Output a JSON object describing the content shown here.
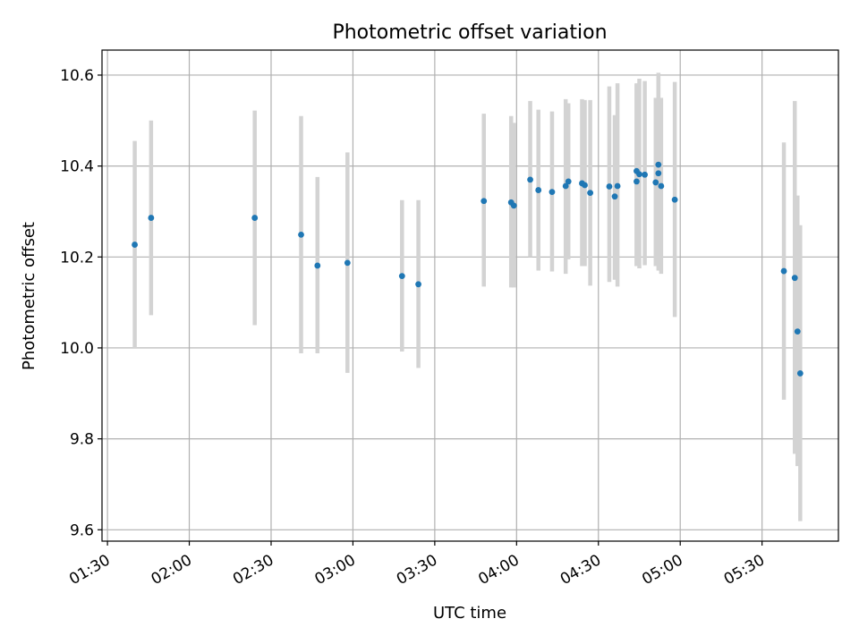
{
  "chart_data": {
    "type": "scatter",
    "title": "Photometric offset variation",
    "xlabel": "UTC time",
    "ylabel": "Photometric offset",
    "xlim": [
      "01:28",
      "05:58"
    ],
    "ylim": [
      9.575,
      10.655
    ],
    "grid": true,
    "x_ticks": [
      "01:30",
      "02:00",
      "02:30",
      "03:00",
      "03:30",
      "04:00",
      "04:30",
      "05:00",
      "05:30"
    ],
    "y_ticks": [
      "9.6",
      "9.8",
      "10.0",
      "10.2",
      "10.4",
      "10.6"
    ],
    "point_color": "#1f77b4",
    "errorbar_color": "#d3d3d3",
    "series": [
      {
        "points": [
          {
            "x": "01:40",
            "y": 10.227,
            "low": 10.0,
            "high": 10.455
          },
          {
            "x": "01:46",
            "y": 10.286,
            "low": 10.072,
            "high": 10.5
          },
          {
            "x": "02:24",
            "y": 10.286,
            "low": 10.05,
            "high": 10.522
          },
          {
            "x": "02:41",
            "y": 10.249,
            "low": 9.988,
            "high": 10.51
          },
          {
            "x": "02:47",
            "y": 10.181,
            "low": 9.988,
            "high": 10.376
          },
          {
            "x": "02:58",
            "y": 10.187,
            "low": 9.945,
            "high": 10.43
          },
          {
            "x": "03:18",
            "y": 10.158,
            "low": 9.992,
            "high": 10.325
          },
          {
            "x": "03:24",
            "y": 10.14,
            "low": 9.956,
            "high": 10.325
          },
          {
            "x": "03:48",
            "y": 10.323,
            "low": 10.135,
            "high": 10.515
          },
          {
            "x": "03:58",
            "y": 10.32,
            "low": 10.133,
            "high": 10.51
          },
          {
            "x": "03:59",
            "y": 10.313,
            "low": 10.133,
            "high": 10.495
          },
          {
            "x": "04:05",
            "y": 10.37,
            "low": 10.2,
            "high": 10.543
          },
          {
            "x": "04:08",
            "y": 10.347,
            "low": 10.17,
            "high": 10.524
          },
          {
            "x": "04:13",
            "y": 10.343,
            "low": 10.168,
            "high": 10.52
          },
          {
            "x": "04:18",
            "y": 10.356,
            "low": 10.163,
            "high": 10.547
          },
          {
            "x": "04:19",
            "y": 10.366,
            "low": 10.195,
            "high": 10.538
          },
          {
            "x": "04:24",
            "y": 10.362,
            "low": 10.18,
            "high": 10.547
          },
          {
            "x": "04:25",
            "y": 10.358,
            "low": 10.18,
            "high": 10.545
          },
          {
            "x": "04:27",
            "y": 10.341,
            "low": 10.137,
            "high": 10.545
          },
          {
            "x": "04:34",
            "y": 10.355,
            "low": 10.145,
            "high": 10.575
          },
          {
            "x": "04:36",
            "y": 10.333,
            "low": 10.15,
            "high": 10.512
          },
          {
            "x": "04:37",
            "y": 10.356,
            "low": 10.135,
            "high": 10.582
          },
          {
            "x": "04:44",
            "y": 10.389,
            "low": 10.18,
            "high": 10.582
          },
          {
            "x": "04:44",
            "y": 10.366,
            "low": 10.18,
            "high": 10.58
          },
          {
            "x": "04:45",
            "y": 10.382,
            "low": 10.175,
            "high": 10.592
          },
          {
            "x": "04:47",
            "y": 10.381,
            "low": 10.182,
            "high": 10.587
          },
          {
            "x": "04:51",
            "y": 10.364,
            "low": 10.18,
            "high": 10.55
          },
          {
            "x": "04:52",
            "y": 10.403,
            "low": 10.2,
            "high": 10.605
          },
          {
            "x": "04:52",
            "y": 10.384,
            "low": 10.17,
            "high": 10.6
          },
          {
            "x": "04:53",
            "y": 10.356,
            "low": 10.163,
            "high": 10.55
          },
          {
            "x": "04:58",
            "y": 10.326,
            "low": 10.068,
            "high": 10.585
          },
          {
            "x": "05:38",
            "y": 10.169,
            "low": 9.886,
            "high": 10.452
          },
          {
            "x": "05:42",
            "y": 10.154,
            "low": 9.767,
            "high": 10.543
          },
          {
            "x": "05:43",
            "y": 10.036,
            "low": 9.74,
            "high": 10.335
          },
          {
            "x": "05:44",
            "y": 9.944,
            "low": 9.619,
            "high": 10.27
          }
        ]
      }
    ]
  }
}
